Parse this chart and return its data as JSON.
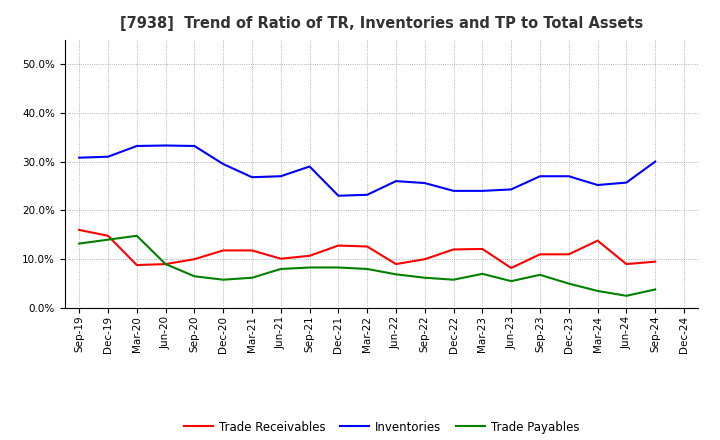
{
  "title": "[7938]  Trend of Ratio of TR, Inventories and TP to Total Assets",
  "x_labels": [
    "Sep-19",
    "Dec-19",
    "Mar-20",
    "Jun-20",
    "Sep-20",
    "Dec-20",
    "Mar-21",
    "Jun-21",
    "Sep-21",
    "Dec-21",
    "Mar-22",
    "Jun-22",
    "Sep-22",
    "Dec-22",
    "Mar-23",
    "Jun-23",
    "Sep-23",
    "Dec-23",
    "Mar-24",
    "Jun-24",
    "Sep-24",
    "Dec-24"
  ],
  "trade_receivables": [
    0.16,
    0.148,
    0.088,
    0.09,
    0.1,
    0.118,
    0.118,
    0.101,
    0.107,
    0.128,
    0.126,
    0.09,
    0.1,
    0.12,
    0.121,
    0.082,
    0.11,
    0.11,
    0.138,
    0.09,
    0.095,
    null
  ],
  "inventories": [
    0.308,
    0.31,
    0.332,
    0.333,
    0.332,
    0.295,
    0.268,
    0.27,
    0.29,
    0.23,
    0.232,
    0.26,
    0.256,
    0.24,
    0.24,
    0.243,
    0.27,
    0.27,
    0.252,
    0.257,
    0.3,
    null
  ],
  "trade_payables": [
    0.132,
    0.14,
    0.148,
    0.09,
    0.065,
    0.058,
    0.062,
    0.08,
    0.083,
    0.083,
    0.08,
    0.069,
    0.062,
    0.058,
    0.07,
    0.055,
    0.068,
    0.05,
    0.035,
    0.025,
    0.038,
    null
  ],
  "tr_color": "#ff0000",
  "inv_color": "#0000ff",
  "tp_color": "#008000",
  "ylim": [
    0.0,
    0.55
  ],
  "yticks": [
    0.0,
    0.1,
    0.2,
    0.3,
    0.4,
    0.5
  ],
  "background_color": "#ffffff",
  "grid_color": "#999999",
  "title_fontsize": 10.5,
  "tick_fontsize": 7.5,
  "legend_labels": [
    "Trade Receivables",
    "Inventories",
    "Trade Payables"
  ]
}
